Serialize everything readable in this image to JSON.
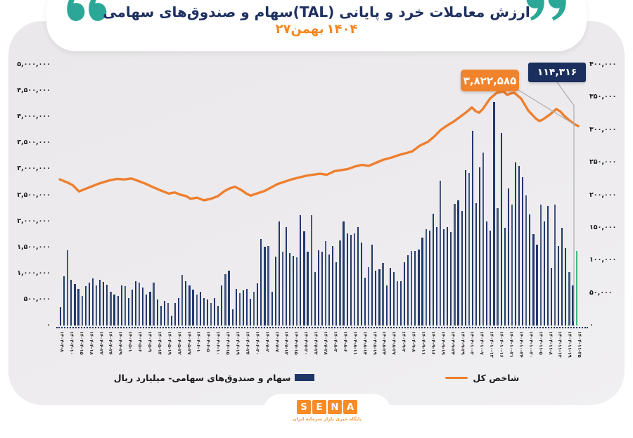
{
  "title": {
    "line1": "ارزش معاملات خرد و پایانی (TAL)سهام و صندوق‌های سهامی",
    "date_day_month": "۲۷بهمن",
    "date_year": "۱۴۰۴"
  },
  "callouts": {
    "index_final_label": "۳,۸۲۲,۵۸۵",
    "last_bar_label": "۱۱۴,۳۱۶"
  },
  "legend": {
    "bars_label": "سهام و صندوق‌های سهامی- میلیارد ریال",
    "line_label": "شاخص کل"
  },
  "footer": {
    "logo_letters": [
      "S",
      "E",
      "N",
      "A"
    ],
    "logo_caption": "پایگاه خبری بازار سرمایه ایران"
  },
  "colors": {
    "navy": "#1e3565",
    "bar_navy": "#22396b",
    "bar_light": "#45587e",
    "bar_highlight_green": "#3db87e",
    "orange": "#ee7f2f",
    "teal_quote": "#2ba797",
    "leader_gray": "#aeadb0",
    "card_gray": "#edebed"
  },
  "chart_data": {
    "type": "bar+line",
    "title": "ارزش معاملات خرد و پایانی (TAL)سهام و صندوق‌های سهامی — ۲۷بهمن ۱۴۰۴",
    "grid": false,
    "legend_position": "bottom",
    "y_axis_left": {
      "max": 5000000,
      "tick_step": 500000,
      "labels": [
        "۵,۰۰۰,۰۰۰",
        "۴,۵۰۰,۰۰۰",
        "۴,۰۰۰,۰۰۰",
        "۳,۵۰۰,۰۰۰",
        "۳,۰۰۰,۰۰۰",
        "۲,۵۰۰,۰۰۰",
        "۲,۰۰۰,۰۰۰",
        "۱,۵۰۰,۰۰۰",
        "۱,۰۰۰,۰۰۰",
        "۵۰۰,۰۰۰",
        "۰"
      ]
    },
    "y_axis_right": {
      "max": 400000,
      "tick_step": 50000,
      "labels": [
        "۴۰۰,۰۰۰",
        "۳۵۰,۰۰۰",
        "۳۰۰,۰۰۰",
        "۲۵۰,۰۰۰",
        "۲۰۰,۰۰۰",
        "۱۵۰,۰۰۰",
        "۱۰۰,۰۰۰",
        "۵۰,۰۰۰",
        "۰"
      ]
    },
    "x_ticks": [
      "۱۴۰۴-۴-۸",
      "۱۴۰۴-۴-۱۰",
      "۱۴۰۴-۴-۱۵",
      "۱۴۰۴-۴-۱۸",
      "۱۴۰۴-۴-۲۲",
      "۱۴۰۴-۴-۲۴",
      "۱۴۰۴-۴-۲۹",
      "۱۴۰۴-۵-۱",
      "۱۴۰۴-۵-۶",
      "۱۴۰۴-۵-۹",
      "۱۴۰۴-۵-۱۴",
      "۱۴۰۴-۵-۱۹",
      "۱۴۰۴-۵-۲۲",
      "۱۴۰۴-۵-۲۷",
      "۱۴۰۴-۶-۱",
      "۱۴۰۴-۶-۵",
      "۱۴۰۴-۶-۱۰",
      "۱۴۰۴-۶-۱۵",
      "۱۴۰۴-۶-۱۹",
      "۱۴۰۴-۶-۲۴",
      "۱۴۰۴-۶-۳۰",
      "۱۴۰۴-۷-۲",
      "۱۴۰۴-۷-۷",
      "۱۴۰۴-۷-۱۲",
      "۱۴۰۴-۷-۱۵",
      "۱۴۰۴-۷-۲۰",
      "۱۴۰۴-۷-۲۳",
      "۱۴۰۴-۷-۲۸",
      "۱۴۰۴-۸-۳",
      "۱۴۰۴-۸-۶",
      "۱۴۰۴-۸-۱۱",
      "۱۴۰۴-۸-۱۴",
      "۱۴۰۴-۸-۱۹",
      "۱۴۰۴-۸-۲۴",
      "۱۴۰۴-۸-۲۷",
      "۱۴۰۴-۹-۳",
      "۱۴۰۴-۹-۸",
      "۱۴۰۴-۹-۱۱",
      "۱۴۰۴-۹-۱۶",
      "۱۴۰۴-۹-۱۹",
      "۱۴۰۴-۹-۲۴",
      "۱۴۰۴-۹-۲۹",
      "۱۴۰۴-۱۰-۲",
      "۱۴۰۴-۱۰-۷",
      "۱۴۰۴-۱۰-۱۲",
      "۱۴۰۴-۱۰-۱۶",
      "۱۴۰۴-۱۰-۲۱",
      "۱۴۰۴-۱۰-۲۴",
      "۱۴۰۴-۱۰-۳۰",
      "۱۴۰۴-۱۱-۵",
      "۱۴۰۴-۱۱-۸",
      "۱۴۰۴-۱۱-۱۳",
      "۱۴۰۴-۱۱-۱۹",
      "۱۴۰۴-۱۱-۲۵"
    ],
    "bars": {
      "name": "سهام و صندوق‌های سهامی- میلیارد ریال",
      "axis": "right",
      "last_value_exact": 114316,
      "values": [
        28000,
        76000,
        115000,
        70000,
        64000,
        56000,
        45000,
        60000,
        66000,
        72000,
        62000,
        70000,
        67000,
        63000,
        52000,
        48000,
        45000,
        62000,
        60000,
        42000,
        55000,
        68000,
        66000,
        58000,
        48000,
        52000,
        66000,
        40000,
        30000,
        38000,
        35000,
        15000,
        35000,
        42000,
        78000,
        68000,
        62000,
        55000,
        48000,
        52000,
        42000,
        40000,
        35000,
        42000,
        30000,
        62000,
        79000,
        84000,
        25000,
        56000,
        50000,
        54000,
        56000,
        41000,
        52000,
        65000,
        133000,
        121000,
        122000,
        52000,
        106000,
        160000,
        113000,
        151000,
        111000,
        107000,
        105000,
        169000,
        144000,
        113000,
        169000,
        82000,
        115000,
        113000,
        129000,
        109000,
        122000,
        97000,
        131000,
        160000,
        141000,
        139000,
        141000,
        151000,
        127000,
        73000,
        90000,
        124000,
        84000,
        86000,
        96000,
        62000,
        89000,
        82000,
        68000,
        68000,
        97000,
        108000,
        114000,
        114000,
        117000,
        135000,
        148000,
        146000,
        171000,
        151000,
        222000,
        148000,
        151000,
        143000,
        187000,
        192000,
        176000,
        238000,
        234000,
        299000,
        188000,
        243000,
        265000,
        160000,
        146000,
        343000,
        180000,
        296000,
        150000,
        210000,
        186000,
        250000,
        245000,
        228000,
        200000,
        170000,
        140000,
        124000,
        185000,
        160000,
        183000,
        89000,
        185000,
        122000,
        150000,
        119000,
        82000,
        61000,
        114316
      ]
    },
    "index_line": {
      "name": "شاخص کل",
      "axis": "left",
      "final_value": 3822585,
      "points": [
        [
          0.0,
          2800000
        ],
        [
          0.015,
          2740000
        ],
        [
          0.025,
          2690000
        ],
        [
          0.037,
          2570000
        ],
        [
          0.055,
          2640000
        ],
        [
          0.075,
          2720000
        ],
        [
          0.095,
          2780000
        ],
        [
          0.11,
          2810000
        ],
        [
          0.125,
          2800000
        ],
        [
          0.138,
          2820000
        ],
        [
          0.152,
          2770000
        ],
        [
          0.165,
          2720000
        ],
        [
          0.178,
          2660000
        ],
        [
          0.192,
          2600000
        ],
        [
          0.21,
          2530000
        ],
        [
          0.222,
          2550000
        ],
        [
          0.232,
          2510000
        ],
        [
          0.244,
          2480000
        ],
        [
          0.252,
          2430000
        ],
        [
          0.265,
          2450000
        ],
        [
          0.278,
          2400000
        ],
        [
          0.292,
          2430000
        ],
        [
          0.305,
          2480000
        ],
        [
          0.318,
          2580000
        ],
        [
          0.328,
          2630000
        ],
        [
          0.338,
          2660000
        ],
        [
          0.35,
          2600000
        ],
        [
          0.36,
          2530000
        ],
        [
          0.368,
          2490000
        ],
        [
          0.38,
          2530000
        ],
        [
          0.395,
          2580000
        ],
        [
          0.42,
          2710000
        ],
        [
          0.447,
          2800000
        ],
        [
          0.475,
          2870000
        ],
        [
          0.502,
          2910000
        ],
        [
          0.515,
          2890000
        ],
        [
          0.53,
          2960000
        ],
        [
          0.556,
          3000000
        ],
        [
          0.57,
          3050000
        ],
        [
          0.583,
          3080000
        ],
        [
          0.596,
          3060000
        ],
        [
          0.61,
          3120000
        ],
        [
          0.625,
          3180000
        ],
        [
          0.64,
          3220000
        ],
        [
          0.655,
          3270000
        ],
        [
          0.67,
          3310000
        ],
        [
          0.68,
          3340000
        ],
        [
          0.695,
          3450000
        ],
        [
          0.71,
          3520000
        ],
        [
          0.722,
          3620000
        ],
        [
          0.735,
          3750000
        ],
        [
          0.748,
          3840000
        ],
        [
          0.76,
          3910000
        ],
        [
          0.775,
          4020000
        ],
        [
          0.788,
          4120000
        ],
        [
          0.795,
          4180000
        ],
        [
          0.802,
          4110000
        ],
        [
          0.809,
          4080000
        ],
        [
          0.816,
          4150000
        ],
        [
          0.83,
          4350000
        ],
        [
          0.843,
          4460000
        ],
        [
          0.856,
          4490000
        ],
        [
          0.863,
          4420000
        ],
        [
          0.87,
          4450000
        ],
        [
          0.877,
          4460000
        ],
        [
          0.89,
          4350000
        ],
        [
          0.904,
          4120000
        ],
        [
          0.918,
          3970000
        ],
        [
          0.925,
          3920000
        ],
        [
          0.932,
          3950000
        ],
        [
          0.945,
          4040000
        ],
        [
          0.958,
          4150000
        ],
        [
          0.966,
          4100000
        ],
        [
          0.973,
          4020000
        ],
        [
          0.981,
          3950000
        ],
        [
          0.99,
          3880000
        ],
        [
          1.0,
          3822585
        ]
      ]
    }
  }
}
